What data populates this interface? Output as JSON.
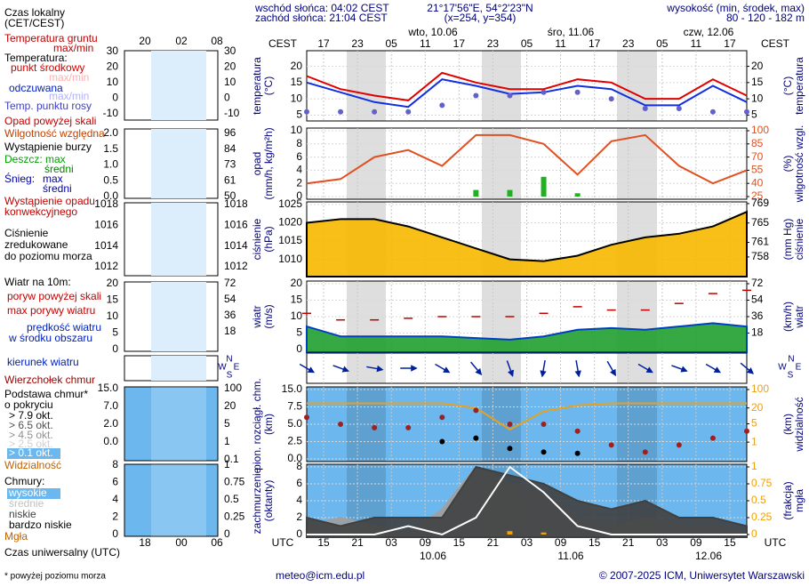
{
  "header": {
    "sunrise": "wschód słońca: 04:02 CEST",
    "sunset": "zachód słońca: 21:04 CEST",
    "coords": "21°17'56\"E, 54°2'23\"N",
    "grid": "(x=254, y=354)",
    "height_title": "wysokość (min, środek, max)",
    "height": "80 - 120 - 182 m"
  },
  "time": {
    "top_zone": "CEST",
    "bottom_zone": "UTC",
    "days_top": [
      "wto, 10.06",
      "śro, 11.06",
      "czw, 12.06"
    ],
    "days_bottom": [
      "10.06",
      "11.06",
      "12.06"
    ],
    "xlim": [
      14,
      92
    ],
    "x": [
      14,
      20,
      26,
      32,
      38,
      44,
      50,
      56,
      62,
      68,
      74,
      80,
      86,
      92
    ],
    "xticks": [
      {
        "value": 17,
        "label": "17"
      },
      {
        "value": 23,
        "label": "23"
      },
      {
        "value": 29,
        "label": "05"
      },
      {
        "value": 35,
        "label": "11"
      },
      {
        "value": 41,
        "label": "17"
      },
      {
        "value": 47,
        "label": "23"
      },
      {
        "value": 53,
        "label": "05"
      },
      {
        "value": 59,
        "label": "11"
      },
      {
        "value": 65,
        "label": "17"
      },
      {
        "value": 71,
        "label": "23"
      },
      {
        "value": 77,
        "label": "05"
      },
      {
        "value": 83,
        "label": "11"
      },
      {
        "value": 89,
        "label": "17"
      }
    ],
    "utc_ticks": [
      {
        "value": 17,
        "label": "15"
      },
      {
        "value": 23,
        "label": "21"
      },
      {
        "value": 29,
        "label": "03"
      },
      {
        "value": 35,
        "label": "09"
      },
      {
        "value": 41,
        "label": "15"
      },
      {
        "value": 47,
        "label": "21"
      },
      {
        "value": 53,
        "label": "03"
      },
      {
        "value": 59,
        "label": "09"
      },
      {
        "value": 65,
        "label": "15"
      },
      {
        "value": 71,
        "label": "21"
      },
      {
        "value": 77,
        "label": "03"
      },
      {
        "value": 83,
        "label": "09"
      },
      {
        "value": 89,
        "label": "15"
      }
    ]
  },
  "chart_data": [
    {
      "type": "line",
      "ylabel": [
        "temperatura",
        "(°C)"
      ],
      "y2label": [
        "(°C)",
        "temperatura"
      ],
      "ylim": [
        4,
        24
      ],
      "yticks": [
        5,
        10,
        15,
        20
      ],
      "y2lim": [
        4,
        24
      ],
      "y2ticks": [
        5,
        10,
        15,
        20
      ],
      "series": [
        {
          "name": "punkt środkowy",
          "style": "line",
          "color": "#e00000",
          "values": [
            17,
            13,
            11,
            9.5,
            18,
            15,
            13,
            13,
            16,
            15,
            10,
            10,
            16,
            11
          ]
        },
        {
          "name": "odczuwana",
          "style": "line",
          "color": "#1030e0",
          "values": [
            15,
            12,
            9,
            7.5,
            16,
            14,
            11.5,
            12,
            14,
            13,
            8,
            8,
            14,
            9
          ]
        },
        {
          "name": "Temp. punktu rosy",
          "style": "dots",
          "color": "#6060d0",
          "values": [
            6,
            6,
            6,
            6,
            8,
            11,
            11,
            12,
            12,
            10,
            7,
            7,
            6,
            6
          ]
        }
      ]
    },
    {
      "type": "line",
      "ylabel": [
        "opad",
        "(mm/h, kg/m²h)"
      ],
      "y2label": [
        "(%)",
        "wilgotność wzgl."
      ],
      "ylim": [
        0,
        10
      ],
      "yticks": [
        0,
        2,
        4,
        6,
        8,
        10
      ],
      "y2lim": [
        25,
        100
      ],
      "y2ticks": [
        25,
        40,
        55,
        70,
        85,
        100
      ],
      "series": [
        {
          "name": "Deszcz",
          "style": "bar",
          "color": "#20b020",
          "values": [
            0,
            0,
            0,
            0,
            0,
            1,
            1,
            3,
            0.5,
            0,
            0,
            0,
            0,
            0
          ]
        },
        {
          "name": "Wilgotność względna",
          "style": "line",
          "color": "#e05020",
          "axis": "y2",
          "values": [
            40,
            45,
            70,
            78,
            60,
            95,
            95,
            85,
            50,
            88,
            95,
            60,
            40,
            55
          ]
        }
      ]
    },
    {
      "type": "line",
      "ylabel": [
        "ciśnienie",
        "(hPa)"
      ],
      "y2label": [
        "(mm Hg)",
        "ciśnienie"
      ],
      "ylim": [
        1006,
        1025
      ],
      "yticks": [
        1010,
        1015,
        1020,
        1025
      ],
      "y2lim": [
        754.5,
        768.8
      ],
      "y2ticks": [
        758,
        761,
        765,
        769
      ],
      "series": [
        {
          "name": "Ciśnienie",
          "style": "area",
          "color": "#000000",
          "fill": "#f8b800",
          "values": [
            1020,
            1021,
            1021,
            1019,
            1016,
            1013,
            1010,
            1009.5,
            1011,
            1014,
            1016,
            1017,
            1019,
            1023
          ]
        }
      ]
    },
    {
      "type": "line",
      "ylabel": [
        "wiatr",
        "(m/s)"
      ],
      "y2label": [
        "(km/h)",
        "wiatr"
      ],
      "ylim": [
        0,
        20
      ],
      "yticks": [
        0,
        5,
        10,
        15,
        20
      ],
      "y2lim": [
        0,
        72
      ],
      "y2ticks": [
        18,
        36,
        54,
        72
      ],
      "series": [
        {
          "name": "max porywy wiatru",
          "style": "dash",
          "color": "#c00000",
          "values": [
            11,
            9,
            9,
            9.5,
            10,
            10,
            10,
            11,
            13,
            12,
            12,
            14,
            17,
            18
          ]
        },
        {
          "name": "prędkość wiatru",
          "style": "area",
          "color": "#0040c0",
          "fill": "#20a030",
          "values": [
            7,
            4,
            4,
            4,
            4,
            3.5,
            3,
            4,
            6,
            6.5,
            6,
            7,
            8,
            7
          ]
        }
      ]
    },
    {
      "type": "barbs",
      "compass": [
        "N",
        "W",
        "E",
        "S"
      ],
      "series": [
        {
          "name": "kierunek wiatru",
          "style": "arrow",
          "color": "#0020a0",
          "values": [
            300,
            290,
            280,
            270,
            300,
            320,
            340,
            10,
            350,
            330,
            300,
            290,
            300,
            310
          ]
        }
      ]
    },
    {
      "type": "line",
      "ylabel": [
        "pion. rozciągł. chm.",
        "(km)"
      ],
      "y2label": [
        "(km)",
        "widzialność"
      ],
      "background": "#6cb8ee",
      "yscale": "tick-spaced",
      "ylim": [
        0,
        15
      ],
      "yticks": [
        {
          "value": 0,
          "label": "0.0"
        },
        {
          "value": 2.5,
          "label": "2.5"
        },
        {
          "value": 5,
          "label": "5.0"
        },
        {
          "value": 7.5,
          "label": "7.5"
        },
        {
          "value": 15,
          "label": "15.0"
        }
      ],
      "y2scale": "log",
      "y2lim": [
        0.23,
        100
      ],
      "y2ticks": [
        1,
        5,
        20,
        100
      ],
      "series": [
        {
          "name": "Widzialność",
          "style": "line",
          "color": "#e8a020",
          "axis": "y2",
          "values": [
            30,
            30,
            30,
            30,
            30,
            20,
            3,
            15,
            25,
            30,
            30,
            30,
            30,
            30
          ]
        },
        {
          "name": "Wierzchołek chmur",
          "style": "dots",
          "color": "#a02020",
          "values": [
            6,
            5,
            4.5,
            4.5,
            6,
            7,
            5,
            5,
            4,
            2,
            1,
            2,
            3,
            4
          ]
        },
        {
          "name": "> 7.9 okt.",
          "style": "dots",
          "color": "#000000",
          "values": [
            null,
            null,
            null,
            null,
            2.5,
            3,
            1.5,
            1,
            0.8,
            null,
            null,
            null,
            null,
            null
          ]
        }
      ]
    },
    {
      "type": "line",
      "ylabel": [
        "zachmurzenie",
        "(oktanty)"
      ],
      "y2label": [
        "(frakcja)",
        "mgła"
      ],
      "background": "#6cb8ee",
      "ylim": [
        0,
        8
      ],
      "yticks": [
        0,
        2,
        4,
        6,
        8
      ],
      "y2lim": [
        0,
        1
      ],
      "y2ticks": [
        0,
        0.25,
        0.5,
        0.75,
        1
      ],
      "series": [
        {
          "name": "średnie",
          "style": "area",
          "color": "#a0a0a0",
          "fill": "#a0a0a0",
          "values": [
            1,
            2,
            1,
            0,
            3,
            8,
            6,
            5,
            2,
            1,
            2,
            1,
            1,
            0
          ]
        },
        {
          "name": "niskie",
          "style": "area",
          "color": "#404040",
          "fill": "#404040",
          "values": [
            2,
            1,
            2,
            2,
            2,
            8,
            7,
            6,
            4,
            3,
            4,
            2,
            2,
            1
          ]
        },
        {
          "name": "wysokie",
          "style": "line",
          "color": "#ffffff",
          "values": [
            0,
            0,
            0,
            1,
            0,
            2,
            8,
            5,
            1,
            0,
            0,
            0,
            0,
            0
          ]
        },
        {
          "name": "Mgła",
          "style": "bar",
          "color": "#f0a000",
          "axis": "y2",
          "values": [
            0,
            0,
            0,
            0,
            0,
            0,
            0.05,
            0.03,
            0,
            0,
            0,
            0,
            0,
            0
          ]
        }
      ]
    }
  ],
  "left": {
    "top_labels": [
      "20",
      "02",
      "08"
    ],
    "bottom_labels": [
      "18",
      "00",
      "06"
    ],
    "ticks": [
      {
        "left": [
          "30",
          "20",
          "10",
          "0",
          "-10"
        ],
        "right": [
          "30",
          "20",
          "10",
          "0",
          "-10"
        ]
      },
      {
        "left": [
          "2.0",
          "1.5",
          "1.0",
          "0.5",
          "0.0"
        ],
        "right": [
          "96",
          "84",
          "73",
          "61",
          "50"
        ]
      },
      {
        "left": [
          "1018",
          "1016",
          "1014",
          "1012"
        ],
        "right": [
          "1018",
          "1016",
          "1014",
          "1012"
        ]
      },
      {
        "left": [
          "20",
          "15",
          "10",
          "5",
          "0"
        ],
        "right": [
          "72",
          "54",
          "36",
          "18"
        ]
      },
      {
        "left": [],
        "right": []
      },
      {
        "left": [
          "15.0",
          "7.0",
          "2.0",
          "0.0"
        ],
        "right": [
          "100",
          "20",
          "5",
          "1",
          "0.1"
        ]
      },
      {
        "left": [
          "8",
          "6",
          "4",
          "2",
          "0"
        ],
        "right": [
          "1",
          "0.75",
          "0.5",
          "0.25",
          "0"
        ]
      }
    ],
    "legend": [
      "Czas lokalny",
      "(CET/CEST)",
      "Temperatura gruntu",
      "max/min",
      "Temperatura:",
      "punkt środkowy",
      "max/min",
      "odczuwana",
      "max/min",
      "Temp. punktu rosy",
      "Opad powyżej skali",
      "Wilgotność względna",
      "Wystąpienie burzy",
      "Deszcz: max",
      "średni",
      "Śnieg:",
      "max",
      "średni",
      "Wystąpienie opadu",
      "konwekcyjnego",
      "Ciśnienie",
      "zredukowane",
      "do poziomu morza",
      "Wiatr na 10m:",
      "poryw powyżej skali",
      "max porywy wiatru",
      "prędkość wiatru",
      "w środku obszaru",
      "kierunek wiatru",
      "Wierzchołek chmur",
      "Podstawa chmur*",
      "o pokryciu",
      "> 7.9 okt.",
      "> 6.5 okt.",
      "> 4.5 okt.",
      "> 2.5 okt.",
      "> 0.1 okt.",
      "Widzialność",
      "Chmury:",
      "wysokie",
      "średnie",
      "niskie",
      "bardzo niskie",
      "Mgła",
      "Czas uniwersalny (UTC)"
    ]
  },
  "footer": {
    "note": "* powyżej poziomu morza",
    "email": "meteo@icm.edu.pl",
    "copyright": "© 2007-2025 ICM, Uniwersytet Warszawski"
  }
}
